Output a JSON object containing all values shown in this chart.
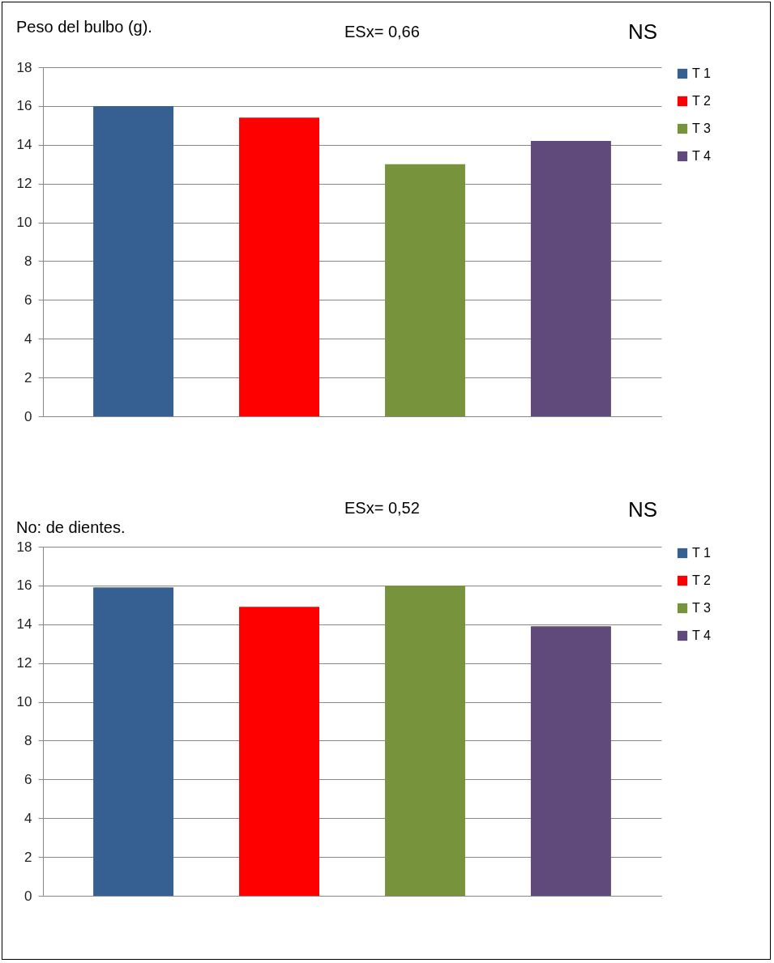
{
  "chart_data": [
    {
      "type": "bar",
      "title": "Peso del bulbo (g).",
      "annotations": [
        "ESx= 0,66",
        "NS"
      ],
      "categories": [
        null
      ],
      "series": [
        {
          "name": "T 1",
          "color": "#366092",
          "values": [
            16.0
          ]
        },
        {
          "name": "T 2",
          "color": "#ff0000",
          "values": [
            15.4
          ]
        },
        {
          "name": "T 3",
          "color": "#77933c",
          "values": [
            13.0
          ]
        },
        {
          "name": "T 4",
          "color": "#604a7b",
          "values": [
            14.2
          ]
        }
      ],
      "ylim": [
        0,
        18
      ],
      "yticks": [
        0,
        2,
        4,
        6,
        8,
        10,
        12,
        14,
        16,
        18
      ],
      "grid": "y",
      "legend": "right",
      "tick_labels": "y"
    },
    {
      "type": "bar",
      "title": "No: de dientes.",
      "annotations": [
        "ESx= 0,52",
        "NS"
      ],
      "categories": [
        null
      ],
      "series": [
        {
          "name": "T 1",
          "color": "#366092",
          "values": [
            15.9
          ]
        },
        {
          "name": "T 2",
          "color": "#ff0000",
          "values": [
            14.9
          ]
        },
        {
          "name": "T 3",
          "color": "#77933c",
          "values": [
            16.0
          ]
        },
        {
          "name": "T 4",
          "color": "#604a7b",
          "values": [
            13.9
          ]
        }
      ],
      "ylim": [
        0,
        18
      ],
      "yticks": [
        0,
        2,
        4,
        6,
        8,
        10,
        12,
        14,
        16,
        18
      ],
      "grid": "y",
      "legend": "right",
      "tick_labels": "y"
    }
  ]
}
